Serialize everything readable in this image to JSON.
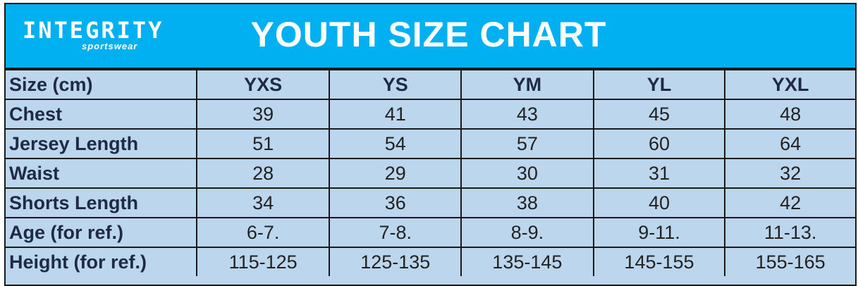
{
  "header": {
    "logo": "INTEGRITY",
    "logo_subtitle": "sportswear",
    "title": "YOUTH SIZE CHART"
  },
  "table": {
    "columns": [
      "Size (cm)",
      "YXS",
      "YS",
      "YM",
      "YL",
      "YXL"
    ],
    "rows": [
      [
        "Chest",
        39,
        41,
        43,
        45,
        48
      ],
      [
        "Jersey Length",
        51,
        54,
        57,
        60,
        64
      ],
      [
        "Waist",
        28,
        29,
        30,
        31,
        32
      ],
      [
        "Shorts Length",
        34,
        36,
        38,
        40,
        42
      ],
      [
        "Age (for ref.)",
        "6-7.",
        "7-8.",
        "8-9.",
        "9-11.",
        "11-13."
      ],
      [
        "Height (for ref.)",
        "115-125",
        "125-135",
        "135-145",
        "145-155",
        "155-165"
      ]
    ]
  }
}
